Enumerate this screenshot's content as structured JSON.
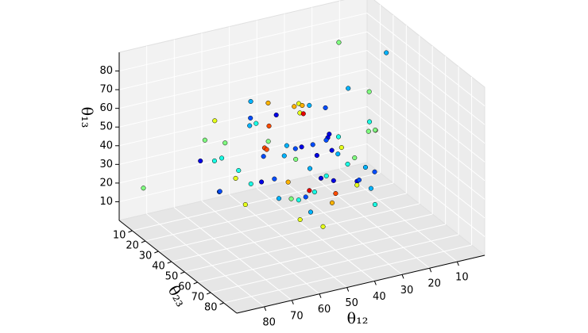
{
  "chart_data": {
    "type": "scatter3d",
    "xlabel": "θ₁₂",
    "ylabel": "θ₂₃",
    "zlabel": "θ₁₃",
    "xlim": [
      0,
      90
    ],
    "ylim": [
      0,
      90
    ],
    "zlim": [
      0,
      90
    ],
    "xticks": [
      10,
      20,
      30,
      40,
      50,
      60,
      70,
      80
    ],
    "yticks": [
      10,
      20,
      30,
      40,
      50,
      60,
      70,
      80
    ],
    "zticks": [
      10,
      20,
      30,
      40,
      50,
      60,
      70,
      80
    ],
    "grid": true,
    "colormap": "jet",
    "x": [
      45,
      52,
      38,
      60,
      30,
      41,
      55,
      48,
      35,
      63,
      27,
      50,
      44,
      58,
      33,
      70,
      20,
      47,
      39,
      56,
      42,
      61,
      36,
      49,
      53,
      31,
      66,
      24,
      46,
      57,
      40,
      34,
      51,
      62,
      29,
      43,
      59,
      37,
      54,
      48,
      15,
      75,
      44,
      32,
      67,
      50,
      41,
      58,
      26,
      45,
      38,
      72,
      53,
      36,
      47,
      60,
      22,
      43,
      55,
      49,
      12,
      80,
      35,
      64,
      46,
      52,
      28,
      57,
      40,
      68,
      33,
      51,
      44,
      61,
      18,
      39,
      48,
      56,
      85,
      8
    ],
    "y": [
      40,
      55,
      30,
      48,
      62,
      35,
      45,
      70,
      25,
      52,
      58,
      42,
      66,
      33,
      50,
      20,
      44,
      75,
      38,
      60,
      47,
      28,
      54,
      68,
      36,
      43,
      15,
      57,
      50,
      80,
      32,
      64,
      46,
      22,
      55,
      41,
      72,
      49,
      37,
      58,
      10,
      45,
      85,
      53,
      30,
      67,
      26,
      43,
      61,
      5,
      50,
      35,
      78,
      44,
      24,
      59,
      48,
      65,
      31,
      52,
      40,
      56,
      18,
      46,
      70,
      34,
      62,
      27,
      53,
      45,
      60,
      38,
      49,
      12,
      44,
      88,
      57,
      29,
      8,
      2
    ],
    "z": [
      45,
      50,
      38,
      55,
      42,
      60,
      35,
      48,
      52,
      40,
      58,
      44,
      30,
      62,
      47,
      36,
      53,
      41,
      65,
      33,
      50,
      28,
      56,
      46,
      70,
      39,
      43,
      57,
      25,
      48,
      63,
      37,
      52,
      44,
      31,
      68,
      40,
      55,
      46,
      22,
      75,
      35,
      50,
      80,
      42,
      58,
      18,
      47,
      60,
      38,
      54,
      45,
      27,
      66,
      49,
      34,
      72,
      41,
      57,
      15,
      85,
      43,
      52,
      36,
      61,
      48,
      30,
      12,
      55,
      44,
      47,
      64,
      39,
      50,
      8,
      57,
      33,
      68,
      20,
      3
    ],
    "c": [
      0.2,
      0.5,
      0.1,
      0.8,
      0.3,
      0.6,
      0.2,
      0.4,
      0.9,
      0.1,
      0.5,
      0.3,
      0.7,
      0.2,
      0.6,
      0.1,
      0.4,
      0.8,
      0.3,
      0.5,
      0.2,
      0.6,
      0.4,
      0.1,
      0.7,
      0.3,
      0.5,
      0.9,
      0.2,
      0.4,
      0.6,
      0.1,
      0.3,
      0.5,
      0.2,
      0.7,
      0.4,
      0.1,
      0.8,
      0.3,
      0.5,
      0.2,
      0.6,
      0.3,
      0.4,
      0.1,
      0.7,
      0.2,
      0.5,
      0.3,
      0.1,
      0.4,
      0.6,
      0.2,
      0.8,
      0.3,
      0.5,
      0.1,
      0.4,
      0.6,
      0.3,
      0.2,
      0.7,
      0.4,
      0.1,
      0.5,
      0.3,
      0.6,
      0.2,
      0.4,
      0.5,
      0.1,
      0.3,
      0.6,
      0.4,
      0.2,
      0.9,
      0.3,
      0.5,
      0.4
    ]
  }
}
